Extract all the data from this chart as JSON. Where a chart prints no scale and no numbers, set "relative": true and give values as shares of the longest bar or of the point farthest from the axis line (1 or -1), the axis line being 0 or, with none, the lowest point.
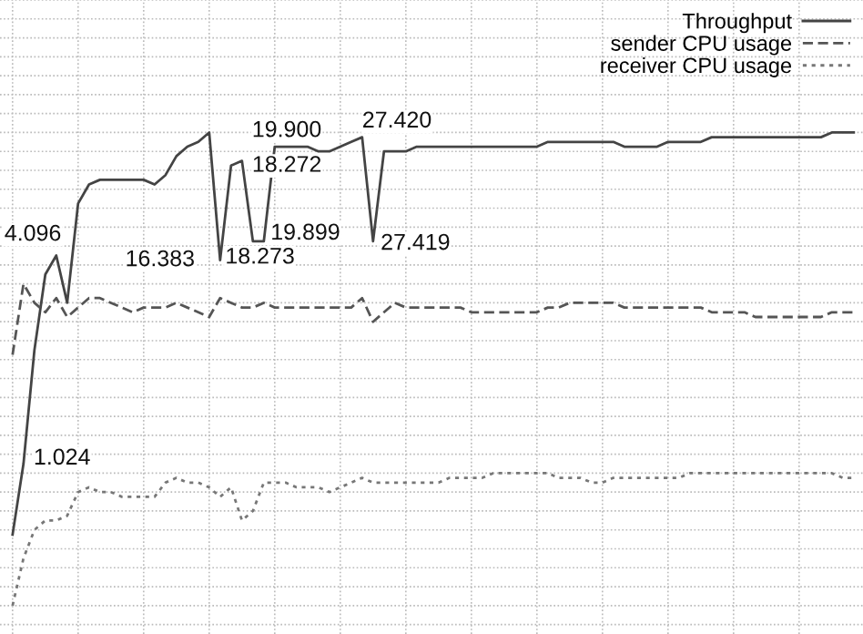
{
  "chart_data": {
    "type": "line",
    "relative": true,
    "legend": "top right",
    "grid": true,
    "categories": [
      null,
      null,
      null,
      null,
      null,
      null,
      null,
      null,
      null,
      null,
      null,
      null,
      null,
      null,
      null,
      null,
      null,
      null,
      null,
      null,
      null,
      null,
      null,
      null,
      null,
      null,
      null,
      null,
      null,
      null,
      null,
      null,
      null,
      null,
      null,
      null,
      null,
      null,
      null,
      null,
      null,
      null,
      null,
      null,
      null,
      null,
      null,
      null,
      null,
      null,
      null,
      null,
      null,
      null,
      null,
      null,
      null,
      null,
      null,
      null,
      null,
      null,
      null,
      null,
      null,
      null,
      null,
      null,
      null,
      null,
      null,
      null,
      null,
      null,
      null,
      null,
      null,
      null
    ],
    "series": [
      {
        "name": "Throughput",
        "color": "#444444",
        "line_style": "solid",
        "values": [
          0.15,
          0.3,
          0.54,
          0.7,
          0.74,
          0.64,
          0.85,
          0.89,
          0.9,
          0.9,
          0.9,
          0.9,
          0.9,
          0.89,
          0.91,
          0.95,
          0.97,
          0.98,
          1.0,
          0.73,
          0.93,
          0.94,
          0.77,
          0.77,
          0.97,
          0.97,
          0.97,
          0.97,
          0.96,
          0.96,
          0.97,
          0.98,
          0.99,
          0.77,
          0.96,
          0.96,
          0.96,
          0.97,
          0.97,
          0.97,
          0.97,
          0.97,
          0.97,
          0.97,
          0.97,
          0.97,
          0.97,
          0.97,
          0.97,
          0.98,
          0.98,
          0.98,
          0.98,
          0.98,
          0.98,
          0.98,
          0.97,
          0.97,
          0.97,
          0.97,
          0.98,
          0.98,
          0.98,
          0.98,
          0.99,
          0.99,
          0.99,
          0.99,
          0.99,
          0.99,
          0.99,
          0.99,
          0.99,
          0.99,
          0.99,
          1.0,
          1.0,
          1.0
        ]
      },
      {
        "name": "sender CPU usage",
        "color": "#555555",
        "line_style": "dashed",
        "values": [
          0.53,
          0.68,
          0.64,
          0.62,
          0.65,
          0.61,
          0.63,
          0.65,
          0.65,
          0.64,
          0.63,
          0.62,
          0.63,
          0.63,
          0.63,
          0.64,
          0.63,
          0.62,
          0.61,
          0.65,
          0.64,
          0.63,
          0.63,
          0.64,
          0.63,
          0.63,
          0.63,
          0.63,
          0.63,
          0.63,
          0.63,
          0.63,
          0.65,
          0.6,
          0.62,
          0.64,
          0.63,
          0.63,
          0.63,
          0.63,
          0.63,
          0.63,
          0.62,
          0.62,
          0.62,
          0.62,
          0.62,
          0.62,
          0.62,
          0.63,
          0.63,
          0.64,
          0.64,
          0.64,
          0.64,
          0.64,
          0.63,
          0.63,
          0.63,
          0.63,
          0.63,
          0.63,
          0.63,
          0.63,
          0.62,
          0.62,
          0.62,
          0.62,
          0.61,
          0.61,
          0.61,
          0.61,
          0.61,
          0.61,
          0.61,
          0.62,
          0.62,
          0.62
        ]
      },
      {
        "name": "receiver CPU usage",
        "color": "#777777",
        "line_style": "dotted",
        "values": [
          0.0,
          0.1,
          0.16,
          0.18,
          0.18,
          0.19,
          0.24,
          0.25,
          0.24,
          0.24,
          0.23,
          0.23,
          0.23,
          0.23,
          0.26,
          0.27,
          0.26,
          0.26,
          0.25,
          0.23,
          0.25,
          0.18,
          0.2,
          0.26,
          0.26,
          0.26,
          0.25,
          0.25,
          0.25,
          0.24,
          0.25,
          0.26,
          0.27,
          0.26,
          0.26,
          0.26,
          0.26,
          0.26,
          0.26,
          0.26,
          0.27,
          0.27,
          0.27,
          0.27,
          0.28,
          0.28,
          0.28,
          0.28,
          0.28,
          0.28,
          0.27,
          0.27,
          0.27,
          0.26,
          0.26,
          0.27,
          0.27,
          0.27,
          0.27,
          0.27,
          0.27,
          0.27,
          0.28,
          0.28,
          0.28,
          0.28,
          0.28,
          0.28,
          0.28,
          0.28,
          0.28,
          0.28,
          0.28,
          0.28,
          0.28,
          0.28,
          0.27,
          0.27
        ]
      }
    ],
    "annotations": [
      "1.024",
      "4.096",
      "16.383",
      "18.273",
      "18.272",
      "19.899",
      "19.900",
      "27.420",
      "27.419"
    ]
  }
}
